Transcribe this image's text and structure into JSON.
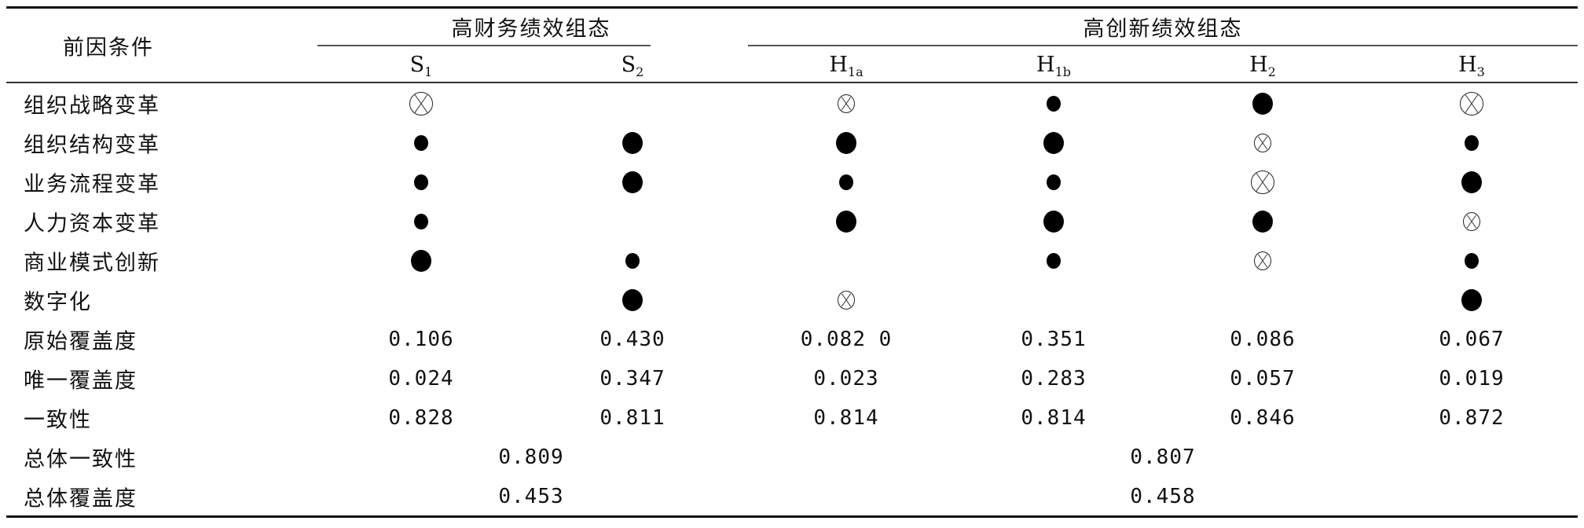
{
  "header": {
    "antecedent": "前因条件",
    "group_financial": "高财务绩效组态",
    "group_innovation": "高创新绩效组态",
    "columns": [
      {
        "base": "S",
        "sub": "1"
      },
      {
        "base": "S",
        "sub": "2"
      },
      {
        "base": "H",
        "sub": "1a"
      },
      {
        "base": "H",
        "sub": "1b"
      },
      {
        "base": "H",
        "sub": "2"
      },
      {
        "base": "H",
        "sub": "3"
      }
    ]
  },
  "legend_note": "L = large filled circle (core present), S = small filled circle (peripheral present), XL = large crossed circle (core absent), XS = small crossed circle (peripheral absent)",
  "condition_rows": [
    {
      "label": "组织战略变革",
      "symbols": [
        "XL",
        "",
        "XS",
        "S",
        "L",
        "XL"
      ]
    },
    {
      "label": "组织结构变革",
      "symbols": [
        "S",
        "L",
        "L",
        "L",
        "XS",
        "S"
      ]
    },
    {
      "label": "业务流程变革",
      "symbols": [
        "S",
        "L",
        "S",
        "S",
        "XL",
        "L"
      ]
    },
    {
      "label": "人力资本变革",
      "symbols": [
        "S",
        "",
        "L",
        "L",
        "L",
        "XS"
      ]
    },
    {
      "label": "商业模式创新",
      "symbols": [
        "L",
        "S",
        "",
        "S",
        "XS",
        "S"
      ]
    },
    {
      "label": "数字化",
      "symbols": [
        "",
        "L",
        "XS",
        "",
        "",
        "L"
      ]
    }
  ],
  "metric_rows": [
    {
      "label": "原始覆盖度",
      "values": [
        "0.106",
        "0.430",
        "0.082 0",
        "0.351",
        "0.086",
        "0.067"
      ]
    },
    {
      "label": "唯一覆盖度",
      "values": [
        "0.024",
        "0.347",
        "0.023",
        "0.283",
        "0.057",
        "0.019"
      ]
    },
    {
      "label": "一致性",
      "values": [
        "0.828",
        "0.811",
        "0.814",
        "0.814",
        "0.846",
        "0.872"
      ]
    }
  ],
  "overall_rows": [
    {
      "label": "总体一致性",
      "financial": "0.809",
      "innovation": "0.807"
    },
    {
      "label": "总体覆盖度",
      "financial": "0.453",
      "innovation": "0.458"
    }
  ]
}
